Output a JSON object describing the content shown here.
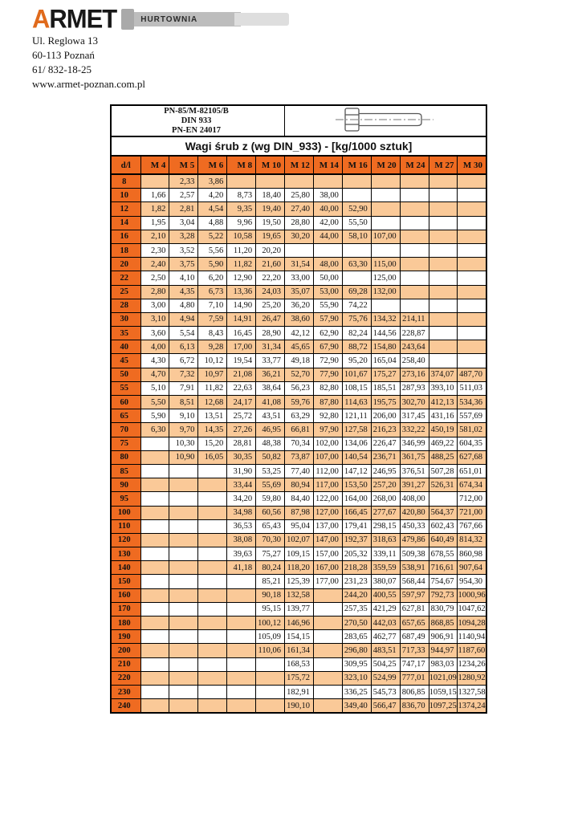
{
  "logo": {
    "brand_a": "A",
    "brand_rest": "RMET",
    "banner": "HURTOWNIA"
  },
  "address": {
    "lines": [
      "Ul. Reglowa 13",
      "60-113 Poznań",
      "61/ 832-18-25",
      "www.armet-poznan.com.pl"
    ]
  },
  "colors": {
    "header_orange": "#ef6b21",
    "row_orange": "#fac998",
    "row_white": "#ffffff",
    "logo_orange": "#e06a1c",
    "logo_gray": "#bdbdbd",
    "border": "#000000"
  },
  "table": {
    "standards": [
      "PN-85/M-82105/B",
      "DIN 933",
      "PN-EN 24017"
    ],
    "title": "Wagi śrub z (wg DIN_933) - [kg/1000 sztuk]",
    "bolt_icon": "hex-bolt-drawing",
    "columns": [
      "d/l",
      "M 4",
      "M 5",
      "M 6",
      "M 8",
      "M 10",
      "M 12",
      "M 14",
      "M 16",
      "M 20",
      "M 24",
      "M 27",
      "M 30"
    ],
    "rows": [
      {
        "d": "8",
        "values": [
          "",
          "2,33",
          "3,86",
          "",
          "",
          "",
          "",
          "",
          "",
          "",
          "",
          ""
        ]
      },
      {
        "d": "10",
        "values": [
          "1,66",
          "2,57",
          "4,20",
          "8,73",
          "18,40",
          "25,80",
          "38,00",
          "",
          "",
          "",
          "",
          ""
        ]
      },
      {
        "d": "12",
        "values": [
          "1,82",
          "2,81",
          "4,54",
          "9,35",
          "19,40",
          "27,40",
          "40,00",
          "52,90",
          "",
          "",
          "",
          ""
        ]
      },
      {
        "d": "14",
        "values": [
          "1,95",
          "3,04",
          "4,88",
          "9,96",
          "19,50",
          "28,80",
          "42,00",
          "55,50",
          "",
          "",
          "",
          ""
        ]
      },
      {
        "d": "16",
        "values": [
          "2,10",
          "3,28",
          "5,22",
          "10,58",
          "19,65",
          "30,20",
          "44,00",
          "58,10",
          "107,00",
          "",
          "",
          ""
        ]
      },
      {
        "d": "18",
        "values": [
          "2,30",
          "3,52",
          "5,56",
          "11,20",
          "20,20",
          "",
          "",
          "",
          "",
          "",
          "",
          ""
        ]
      },
      {
        "d": "20",
        "values": [
          "2,40",
          "3,75",
          "5,90",
          "11,82",
          "21,60",
          "31,54",
          "48,00",
          "63,30",
          "115,00",
          "",
          "",
          ""
        ]
      },
      {
        "d": "22",
        "values": [
          "2,50",
          "4,10",
          "6,20",
          "12,90",
          "22,20",
          "33,00",
          "50,00",
          "",
          "125,00",
          "",
          "",
          ""
        ]
      },
      {
        "d": "25",
        "values": [
          "2,80",
          "4,35",
          "6,73",
          "13,36",
          "24,03",
          "35,07",
          "53,00",
          "69,28",
          "132,00",
          "",
          "",
          ""
        ]
      },
      {
        "d": "28",
        "values": [
          "3,00",
          "4,80",
          "7,10",
          "14,90",
          "25,20",
          "36,20",
          "55,90",
          "74,22",
          "",
          "",
          "",
          ""
        ]
      },
      {
        "d": "30",
        "values": [
          "3,10",
          "4,94",
          "7,59",
          "14,91",
          "26,47",
          "38,60",
          "57,90",
          "75,76",
          "134,32",
          "214,11",
          "",
          ""
        ]
      },
      {
        "d": "35",
        "values": [
          "3,60",
          "5,54",
          "8,43",
          "16,45",
          "28,90",
          "42,12",
          "62,90",
          "82,24",
          "144,56",
          "228,87",
          "",
          ""
        ]
      },
      {
        "d": "40",
        "values": [
          "4,00",
          "6,13",
          "9,28",
          "17,00",
          "31,34",
          "45,65",
          "67,90",
          "88,72",
          "154,80",
          "243,64",
          "",
          ""
        ]
      },
      {
        "d": "45",
        "values": [
          "4,30",
          "6,72",
          "10,12",
          "19,54",
          "33,77",
          "49,18",
          "72,90",
          "95,20",
          "165,04",
          "258,40",
          "",
          ""
        ]
      },
      {
        "d": "50",
        "values": [
          "4,70",
          "7,32",
          "10,97",
          "21,08",
          "36,21",
          "52,70",
          "77,90",
          "101,67",
          "175,27",
          "273,16",
          "374,07",
          "487,70"
        ]
      },
      {
        "d": "55",
        "values": [
          "5,10",
          "7,91",
          "11,82",
          "22,63",
          "38,64",
          "56,23",
          "82,80",
          "108,15",
          "185,51",
          "287,93",
          "393,10",
          "511,03"
        ]
      },
      {
        "d": "60",
        "values": [
          "5,50",
          "8,51",
          "12,68",
          "24,17",
          "41,08",
          "59,76",
          "87,80",
          "114,63",
          "195,75",
          "302,70",
          "412,13",
          "534,36"
        ]
      },
      {
        "d": "65",
        "values": [
          "5,90",
          "9,10",
          "13,51",
          "25,72",
          "43,51",
          "63,29",
          "92,80",
          "121,11",
          "206,00",
          "317,45",
          "431,16",
          "557,69"
        ]
      },
      {
        "d": "70",
        "values": [
          "6,30",
          "9,70",
          "14,35",
          "27,26",
          "46,95",
          "66,81",
          "97,90",
          "127,58",
          "216,23",
          "332,22",
          "450,19",
          "581,02"
        ]
      },
      {
        "d": "75",
        "values": [
          "",
          "10,30",
          "15,20",
          "28,81",
          "48,38",
          "70,34",
          "102,00",
          "134,06",
          "226,47",
          "346,99",
          "469,22",
          "604,35"
        ]
      },
      {
        "d": "80",
        "values": [
          "",
          "10,90",
          "16,05",
          "30,35",
          "50,82",
          "73,87",
          "107,00",
          "140,54",
          "236,71",
          "361,75",
          "488,25",
          "627,68"
        ]
      },
      {
        "d": "85",
        "values": [
          "",
          "",
          "",
          "31,90",
          "53,25",
          "77,40",
          "112,00",
          "147,12",
          "246,95",
          "376,51",
          "507,28",
          "651,01"
        ]
      },
      {
        "d": "90",
        "values": [
          "",
          "",
          "",
          "33,44",
          "55,69",
          "80,94",
          "117,00",
          "153,50",
          "257,20",
          "391,27",
          "526,31",
          "674,34"
        ]
      },
      {
        "d": "95",
        "values": [
          "",
          "",
          "",
          "34,20",
          "59,80",
          "84,40",
          "122,00",
          "164,00",
          "268,00",
          "408,00",
          "",
          "712,00"
        ]
      },
      {
        "d": "100",
        "values": [
          "",
          "",
          "",
          "34,98",
          "60,56",
          "87,98",
          "127,00",
          "166,45",
          "277,67",
          "420,80",
          "564,37",
          "721,00"
        ]
      },
      {
        "d": "110",
        "values": [
          "",
          "",
          "",
          "36,53",
          "65,43",
          "95,04",
          "137,00",
          "179,41",
          "298,15",
          "450,33",
          "602,43",
          "767,66"
        ]
      },
      {
        "d": "120",
        "values": [
          "",
          "",
          "",
          "38,08",
          "70,30",
          "102,07",
          "147,00",
          "192,37",
          "318,63",
          "479,86",
          "640,49",
          "814,32"
        ]
      },
      {
        "d": "130",
        "values": [
          "",
          "",
          "",
          "39,63",
          "75,27",
          "109,15",
          "157,00",
          "205,32",
          "339,11",
          "509,38",
          "678,55",
          "860,98"
        ]
      },
      {
        "d": "140",
        "values": [
          "",
          "",
          "",
          "41,18",
          "80,24",
          "118,20",
          "167,00",
          "218,28",
          "359,59",
          "538,91",
          "716,61",
          "907,64"
        ]
      },
      {
        "d": "150",
        "values": [
          "",
          "",
          "",
          "",
          "85,21",
          "125,39",
          "177,00",
          "231,23",
          "380,07",
          "568,44",
          "754,67",
          "954,30"
        ]
      },
      {
        "d": "160",
        "values": [
          "",
          "",
          "",
          "",
          "90,18",
          "132,58",
          "",
          "244,20",
          "400,55",
          "597,97",
          "792,73",
          "1000,96"
        ]
      },
      {
        "d": "170",
        "values": [
          "",
          "",
          "",
          "",
          "95,15",
          "139,77",
          "",
          "257,35",
          "421,29",
          "627,81",
          "830,79",
          "1047,62"
        ]
      },
      {
        "d": "180",
        "values": [
          "",
          "",
          "",
          "",
          "100,12",
          "146,96",
          "",
          "270,50",
          "442,03",
          "657,65",
          "868,85",
          "1094,28"
        ]
      },
      {
        "d": "190",
        "values": [
          "",
          "",
          "",
          "",
          "105,09",
          "154,15",
          "",
          "283,65",
          "462,77",
          "687,49",
          "906,91",
          "1140,94"
        ]
      },
      {
        "d": "200",
        "values": [
          "",
          "",
          "",
          "",
          "110,06",
          "161,34",
          "",
          "296,80",
          "483,51",
          "717,33",
          "944,97",
          "1187,60"
        ]
      },
      {
        "d": "210",
        "values": [
          "",
          "",
          "",
          "",
          "",
          "168,53",
          "",
          "309,95",
          "504,25",
          "747,17",
          "983,03",
          "1234,26"
        ]
      },
      {
        "d": "220",
        "values": [
          "",
          "",
          "",
          "",
          "",
          "175,72",
          "",
          "323,10",
          "524,99",
          "777,01",
          "1021,09",
          "1280,92"
        ]
      },
      {
        "d": "230",
        "values": [
          "",
          "",
          "",
          "",
          "",
          "182,91",
          "",
          "336,25",
          "545,73",
          "806,85",
          "1059,15",
          "1327,58"
        ]
      },
      {
        "d": "240",
        "values": [
          "",
          "",
          "",
          "",
          "",
          "190,10",
          "",
          "349,40",
          "566,47",
          "836,70",
          "1097,25",
          "1374,24"
        ]
      }
    ]
  }
}
